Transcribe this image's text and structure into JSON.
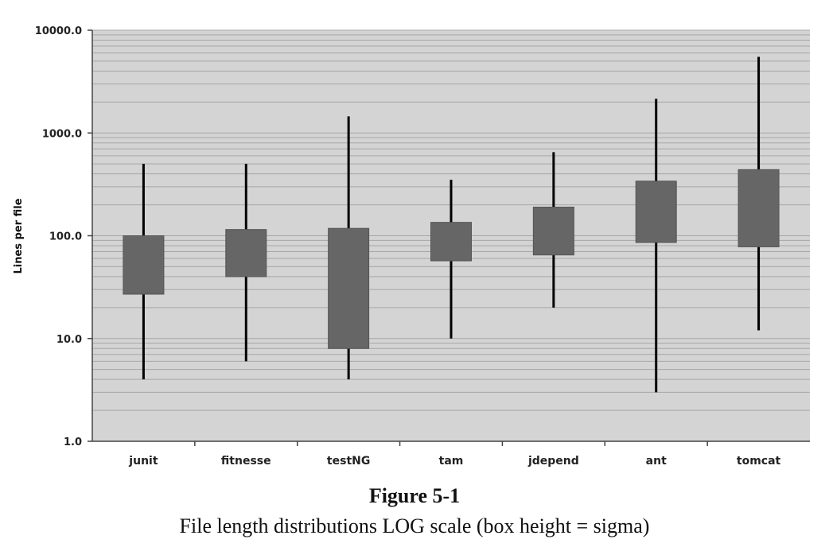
{
  "figure": {
    "number": "Figure 5-1",
    "caption": "File length distributions LOG scale (box height = sigma)"
  },
  "chart_data": {
    "type": "box",
    "ylabel": "Lines per file",
    "xlabel": "",
    "yscale": "log",
    "ylim": [
      1,
      10000
    ],
    "yticks": [
      "1.0",
      "10.0",
      "100.0",
      "1000.0",
      "10000.0"
    ],
    "grid": true,
    "colors": {
      "plot_background": "#d4d4d4",
      "box": "#666666",
      "whisker": "#000000",
      "grid": "#a6a6a6"
    },
    "categories": [
      "junit",
      "fitnesse",
      "testNG",
      "tam",
      "jdepend",
      "ant",
      "tomcat"
    ],
    "boxes": [
      {
        "name": "junit",
        "whisker_low": 4,
        "box_low": 27,
        "box_high": 100,
        "whisker_high": 500
      },
      {
        "name": "fitnesse",
        "whisker_low": 6,
        "box_low": 40,
        "box_high": 115,
        "whisker_high": 500
      },
      {
        "name": "testNG",
        "whisker_low": 4,
        "box_low": 8,
        "box_high": 118,
        "whisker_high": 1450
      },
      {
        "name": "tam",
        "whisker_low": 10,
        "box_low": 57,
        "box_high": 135,
        "whisker_high": 350
      },
      {
        "name": "jdepend",
        "whisker_low": 20,
        "box_low": 65,
        "box_high": 190,
        "whisker_high": 650
      },
      {
        "name": "ant",
        "whisker_low": 3,
        "box_low": 86,
        "box_high": 340,
        "whisker_high": 2150
      },
      {
        "name": "tomcat",
        "whisker_low": 12,
        "box_low": 78,
        "box_high": 440,
        "whisker_high": 5500
      }
    ]
  }
}
